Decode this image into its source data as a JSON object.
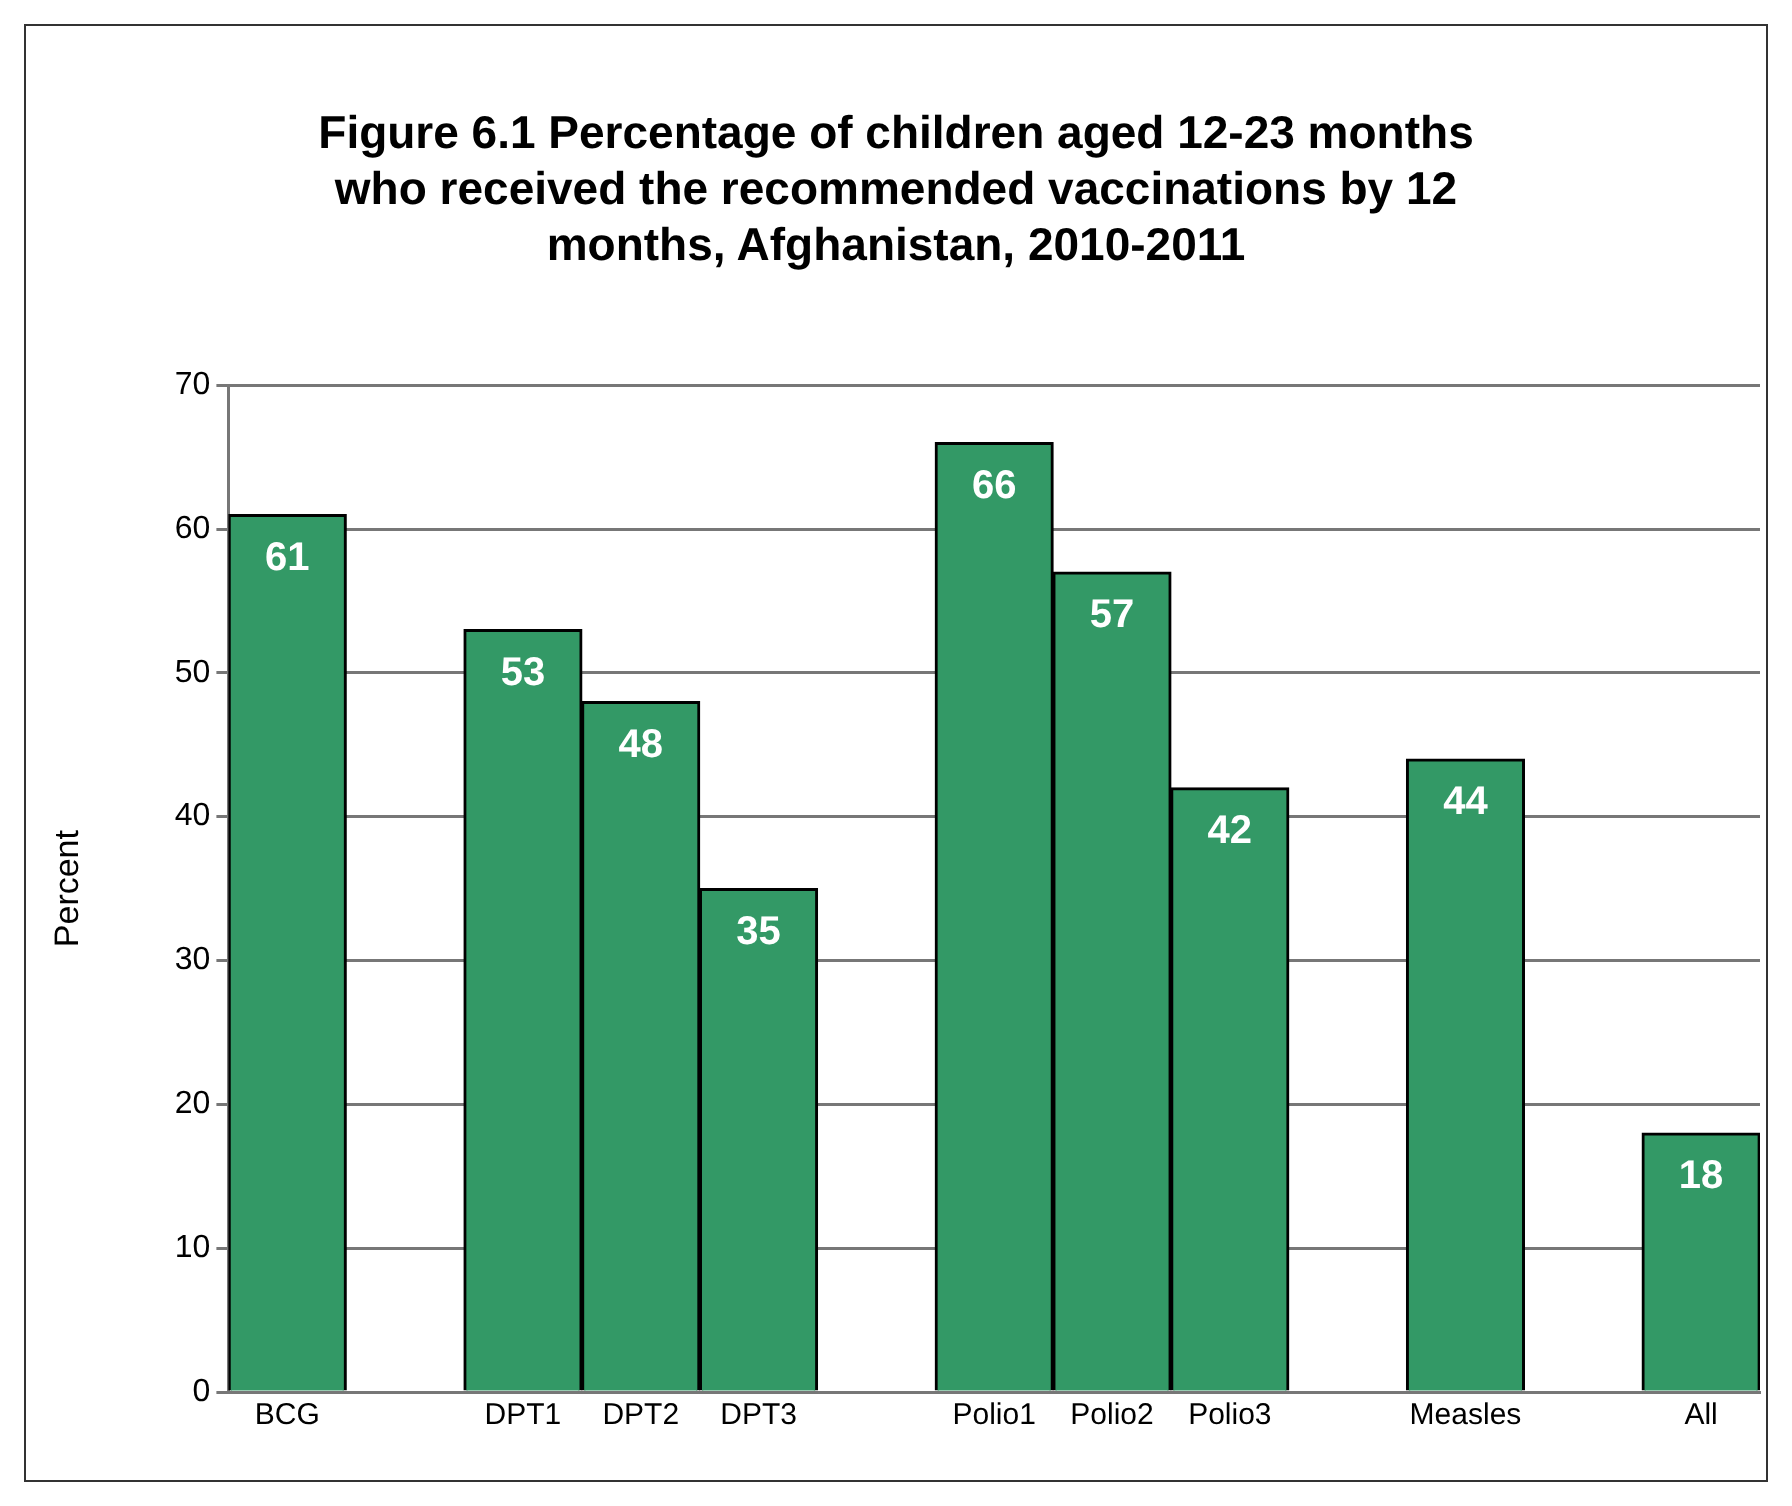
{
  "chart_data": {
    "type": "bar",
    "title": "Figure 6.1 Percentage of children aged 12-23 months\nwho received the recommended vaccinations by 12\nmonths, Afghanistan, 2010-2011",
    "ylabel": "Percent",
    "categories": [
      "BCG",
      null,
      "DPT1",
      "DPT2",
      "DPT3",
      null,
      "Polio1",
      "Polio2",
      "Polio3",
      null,
      "Measles",
      null,
      "All"
    ],
    "values": [
      61,
      null,
      53,
      48,
      35,
      null,
      66,
      57,
      42,
      null,
      44,
      null,
      18
    ],
    "color": "#339966",
    "ylim": [
      0,
      70
    ],
    "yticks": [
      0,
      10,
      20,
      30,
      40,
      50,
      60,
      70
    ],
    "grid": "y",
    "data_labels": true,
    "legend": false
  }
}
